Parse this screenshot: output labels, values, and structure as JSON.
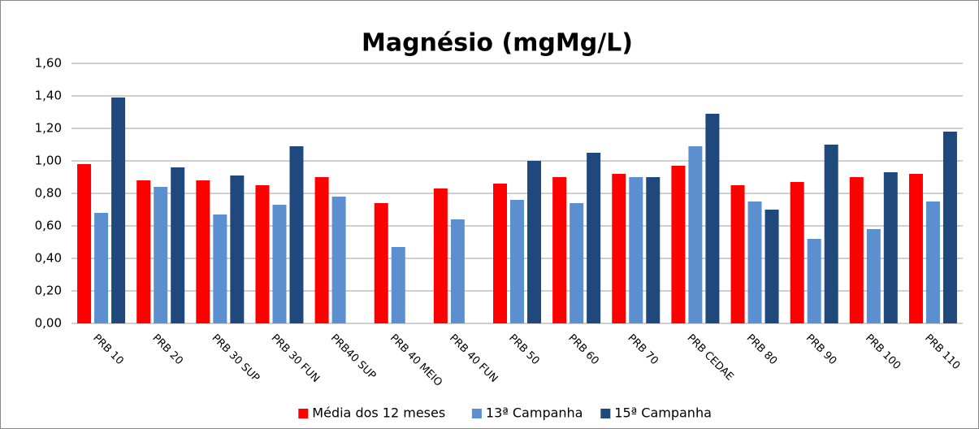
{
  "chart_data": {
    "type": "bar",
    "title": "Magnésio (mgMg/L)",
    "categories": [
      "PRB 10",
      "PRB 20",
      "PRB 30 SUP",
      "PRB 30 FUN",
      "PRB40 SUP",
      "PRB 40 MEIO",
      "PRB 40 FUN",
      "PRB 50",
      "PRB 60",
      "PRB 70",
      "PRB CEDAE",
      "PRB 80",
      "PRB 90",
      "PRB 100",
      "PRB 110"
    ],
    "series": [
      {
        "name": "Média dos 12 meses",
        "color": "#ff0000",
        "values": [
          0.98,
          0.88,
          0.88,
          0.85,
          0.9,
          0.74,
          0.83,
          0.86,
          0.9,
          0.92,
          0.97,
          0.85,
          0.87,
          0.9,
          0.92
        ]
      },
      {
        "name": "13ª Campanha",
        "color": "#5b8fd0",
        "values": [
          0.68,
          0.84,
          0.67,
          0.73,
          0.78,
          0.47,
          0.64,
          0.76,
          0.74,
          0.9,
          1.09,
          0.75,
          0.52,
          0.58,
          0.75
        ]
      },
      {
        "name": "15ª Campanha",
        "color": "#1f497d",
        "values": [
          1.39,
          0.96,
          0.91,
          1.09,
          null,
          null,
          null,
          1.0,
          1.05,
          0.9,
          1.29,
          0.7,
          1.1,
          0.93,
          1.18
        ]
      }
    ],
    "ylim": [
      0,
      1.6
    ],
    "yticks": [
      {
        "value": 0,
        "label": "0,00"
      },
      {
        "value": 0.2,
        "label": "0,20"
      },
      {
        "value": 0.4,
        "label": "0,40"
      },
      {
        "value": 0.6,
        "label": "0,60"
      },
      {
        "value": 0.8,
        "label": "0,80"
      },
      {
        "value": 1.0,
        "label": "1,00"
      },
      {
        "value": 1.2,
        "label": "1,20"
      },
      {
        "value": 1.4,
        "label": "1,40"
      },
      {
        "value": 1.6,
        "label": "1,60"
      }
    ],
    "grid": true,
    "legend": "bottom"
  }
}
